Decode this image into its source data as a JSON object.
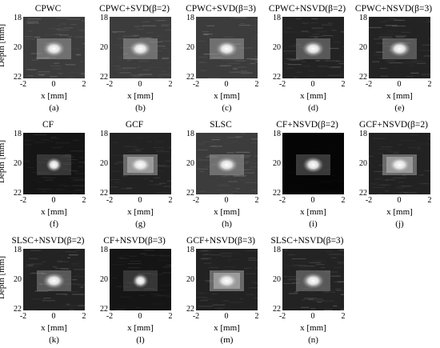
{
  "figure": {
    "panels": [
      {
        "title": "CPWC",
        "caption": "(a)",
        "style": "speckle-light",
        "show_ylabel": true
      },
      {
        "title": "CPWC+SVD(β=2)",
        "caption": "(b)",
        "style": "speckle-light",
        "show_ylabel": false
      },
      {
        "title": "CPWC+SVD(β=3)",
        "caption": "(c)",
        "style": "speckle-light",
        "show_ylabel": false
      },
      {
        "title": "CPWC+NSVD(β=2)",
        "caption": "(d)",
        "style": "speckle-dark",
        "show_ylabel": false
      },
      {
        "title": "CPWC+NSVD(β=3)",
        "caption": "(e)",
        "style": "speckle-dark",
        "show_ylabel": false
      },
      {
        "title": "CF",
        "caption": "(f)",
        "style": "cf",
        "show_ylabel": true
      },
      {
        "title": "GCF",
        "caption": "(g)",
        "style": "gcf",
        "show_ylabel": false
      },
      {
        "title": "SLSC",
        "caption": "(h)",
        "style": "speckle-light",
        "show_ylabel": false
      },
      {
        "title": "CF+NSVD(β=2)",
        "caption": "(i)",
        "style": "black",
        "show_ylabel": false
      },
      {
        "title": "GCF+NSVD(β=2)",
        "caption": "(j)",
        "style": "gcf",
        "show_ylabel": false
      },
      {
        "title": "SLSC+NSVD(β=2)",
        "caption": "(k)",
        "style": "speckle-dark",
        "show_ylabel": true
      },
      {
        "title": "CF+NSVD(β=3)",
        "caption": "(l)",
        "style": "cf",
        "show_ylabel": false
      },
      {
        "title": "GCF+NSVD(β=3)",
        "caption": "(m)",
        "style": "gcf",
        "show_ylabel": false
      },
      {
        "title": "SLSC+NSVD(β=3)",
        "caption": "(n)",
        "style": "speckle-dark",
        "show_ylabel": false
      }
    ],
    "xlabel": "x [mm]",
    "ylabel": "Depth [mm]",
    "xticks": [
      "-2",
      "0",
      "2"
    ],
    "yticks": [
      "18",
      "20",
      "22"
    ]
  }
}
